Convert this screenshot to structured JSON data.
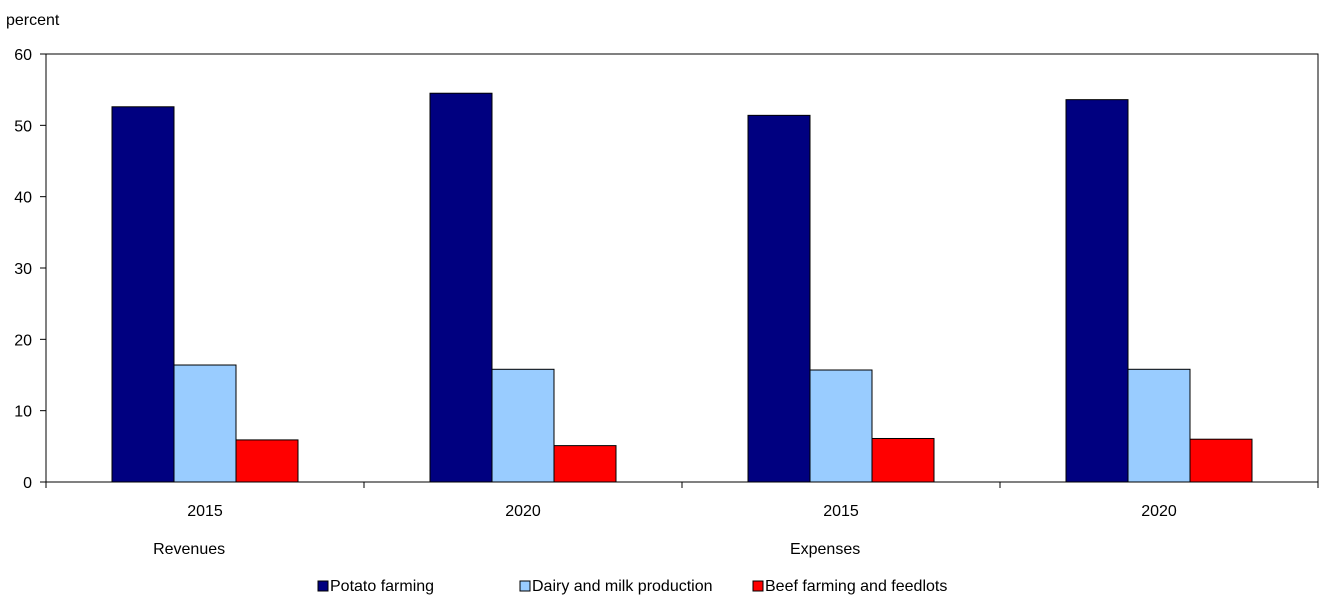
{
  "chart_data": {
    "type": "bar",
    "ylabel": "percent",
    "xlabel": "",
    "ylim": [
      0,
      60
    ],
    "yticks": [
      "0",
      "10",
      "20",
      "30",
      "40",
      "50",
      "60"
    ],
    "groups": [
      "Revenues",
      "Expenses"
    ],
    "categories": [
      "2015",
      "2020",
      "2015",
      "2020"
    ],
    "series": [
      {
        "name": "Potato farming",
        "color": "#000080",
        "values": [
          52.6,
          54.5,
          51.4,
          53.6
        ]
      },
      {
        "name": "Dairy and milk production",
        "color": "#99CCFF",
        "values": [
          16.4,
          15.8,
          15.7,
          15.8
        ]
      },
      {
        "name": "Beef farming and feedlots",
        "color": "#FF0000",
        "values": [
          5.9,
          5.1,
          6.1,
          6.0
        ]
      }
    ],
    "grid": false,
    "legend_position": "bottom"
  }
}
